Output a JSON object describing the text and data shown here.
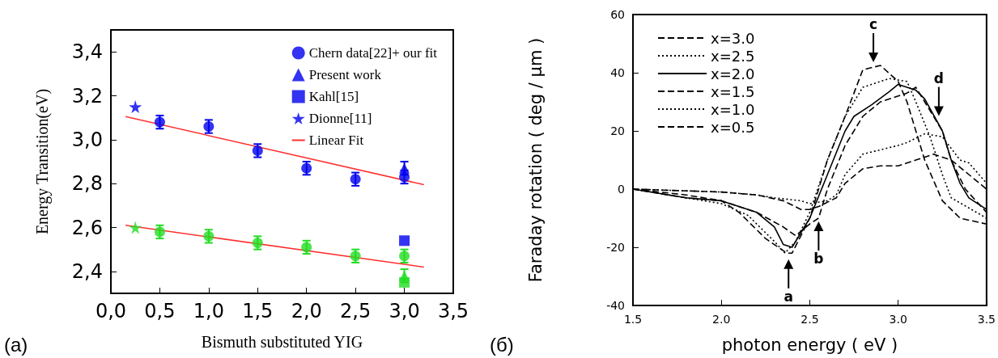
{
  "chart_data": [
    {
      "type": "scatter",
      "xlabel": "Bismuth substituted YIG",
      "ylabel": "Energy Transition(eV)",
      "xlim": [
        0,
        3.5
      ],
      "xticks": [
        {
          "value": 0,
          "label": "0,0"
        },
        {
          "value": 0.5,
          "label": "0,5"
        },
        {
          "value": 1,
          "label": "1,0"
        },
        {
          "value": 1.5,
          "label": "1,5"
        },
        {
          "value": 2,
          "label": "2,0"
        },
        {
          "value": 2.5,
          "label": "2,5"
        },
        {
          "value": 3,
          "label": "3,0"
        },
        {
          "value": 3.5,
          "label": "3,5"
        }
      ],
      "ylim": [
        2.3,
        3.5
      ],
      "yticks": [
        {
          "value": 2.4,
          "label": "2,4"
        },
        {
          "value": 2.6,
          "label": "2,6"
        },
        {
          "value": 2.8,
          "label": "2,8"
        },
        {
          "value": 3.0,
          "label": "3,0"
        },
        {
          "value": 3.2,
          "label": "3,2"
        },
        {
          "value": 3.4,
          "label": "3,4"
        }
      ],
      "legend": "top right",
      "annotations": [
        "(a)"
      ],
      "series": [
        {
          "name": "Chern data[22]+ our fit",
          "color": "#0000ee",
          "marker": "circle",
          "x": [
            0.5,
            1,
            1.5,
            2,
            2.5,
            3
          ],
          "values": [
            3.08,
            3.06,
            2.95,
            2.87,
            2.82,
            2.83
          ],
          "errors": [
            0.03,
            0.03,
            0.03,
            0.03,
            0.03,
            0.03
          ]
        },
        {
          "name": "Present work",
          "color": "#0000ee",
          "marker": "triangle",
          "x": [
            3
          ],
          "values": [
            2.87
          ],
          "errors": [
            0.03
          ]
        },
        {
          "name": "Kahl[15]",
          "color": "#0000ee",
          "marker": "square",
          "x": [
            3
          ],
          "values": [
            2.54
          ]
        },
        {
          "name": "Dionne[11]",
          "color": "#0000ee",
          "marker": "star",
          "x": [
            0.25
          ],
          "values": [
            3.15
          ]
        },
        {
          "name": "Linear Fit",
          "type": "line",
          "color": "#ff3030",
          "marker": "none",
          "x": [
            0.15,
            3.2
          ],
          "values": [
            3.105,
            2.795
          ]
        },
        {
          "color": "#22dd22",
          "marker": "circle",
          "x": [
            0.5,
            1,
            1.5,
            2,
            2.5,
            3
          ],
          "values": [
            2.58,
            2.56,
            2.53,
            2.51,
            2.47,
            2.47
          ],
          "errors": [
            0.03,
            0.03,
            0.03,
            0.03,
            0.03,
            0.03
          ]
        },
        {
          "color": "#22dd22",
          "marker": "square",
          "x": [
            3
          ],
          "values": [
            2.35
          ]
        },
        {
          "color": "#22dd22",
          "marker": "triangle",
          "x": [
            3
          ],
          "values": [
            2.38
          ],
          "errors": [
            0.03
          ]
        },
        {
          "color": "#22dd22",
          "marker": "star",
          "x": [
            0.25
          ],
          "values": [
            2.6
          ]
        },
        {
          "type": "line",
          "color": "#ff3030",
          "marker": "none",
          "x": [
            0.15,
            3.2
          ],
          "values": [
            2.61,
            2.42
          ]
        }
      ]
    },
    {
      "type": "line",
      "xlabel": "photon energy ( eV )",
      "ylabel": "Faraday rotation ( deg / μm )",
      "xlim": [
        1.5,
        3.5
      ],
      "xticks": [
        1.5,
        {
          "value": 2,
          "label": "2.0"
        },
        2.5,
        {
          "value": 3,
          "label": "3.0"
        },
        3.5
      ],
      "ylim": [
        -40,
        60
      ],
      "yticks": [
        -40,
        -20,
        0,
        20,
        40,
        60
      ],
      "legend": "top left",
      "marker": "none",
      "annotations": [
        "(б)",
        {
          "text": "a",
          "x": 2.38,
          "y": -23
        },
        {
          "text": "b",
          "x": 2.55,
          "y": -10
        },
        {
          "text": "c",
          "x": 2.86,
          "y": 42.5
        },
        {
          "text": "d",
          "x": 3.23,
          "y": 24
        }
      ],
      "series": [
        {
          "name": "x=3.0",
          "color": "#000000",
          "line_style": "dashed",
          "x": [
            1.5,
            1.8,
            2.0,
            2.1,
            2.25,
            2.37,
            2.4,
            2.5,
            2.6,
            2.7,
            2.8,
            2.9,
            3.0,
            3.05,
            3.15,
            3.25,
            3.35,
            3.5
          ],
          "values": [
            0,
            -2,
            -4,
            -8,
            -17,
            -22,
            -22,
            -10,
            10,
            25,
            41,
            42.5,
            37,
            30,
            10,
            -4,
            -10,
            -12
          ]
        },
        {
          "name": "x=2.5",
          "color": "#000000",
          "line_style": "dotted",
          "x": [
            1.5,
            1.8,
            2.0,
            2.15,
            2.3,
            2.36,
            2.42,
            2.5,
            2.6,
            2.7,
            2.8,
            2.9,
            2.95,
            3.05,
            3.1,
            3.18,
            3.25,
            3.3,
            3.5
          ],
          "values": [
            0,
            -3,
            -5,
            -9,
            -18,
            -22,
            -18,
            -8,
            10,
            25,
            35,
            37,
            38,
            37,
            30,
            18,
            5,
            -3,
            -10
          ]
        },
        {
          "name": "x=2.0",
          "color": "#000000",
          "line_style": "solid",
          "x": [
            1.5,
            1.8,
            2.0,
            2.2,
            2.3,
            2.35,
            2.4,
            2.5,
            2.6,
            2.7,
            2.75,
            2.85,
            2.95,
            3.0,
            3.1,
            3.15,
            3.25,
            3.3,
            3.35,
            3.4,
            3.5
          ],
          "values": [
            0,
            -3,
            -4,
            -8,
            -13,
            -19,
            -20,
            -10,
            5,
            20,
            25,
            29,
            33.5,
            36,
            34,
            31,
            20,
            10,
            2,
            -3,
            -7
          ]
        },
        {
          "name": "x=1.5",
          "color": "#000000",
          "line_style": "dashed",
          "x": [
            1.5,
            1.8,
            2.0,
            2.2,
            2.35,
            2.42,
            2.5,
            2.55,
            2.6,
            2.7,
            2.8,
            2.9,
            3.05,
            3.1,
            3.15,
            3.25,
            3.3,
            3.38,
            3.5
          ],
          "values": [
            0,
            -3,
            -4,
            -8,
            -13,
            -16,
            -12,
            -10,
            0,
            15,
            25,
            30,
            33,
            35,
            30,
            20,
            10,
            0,
            -8
          ]
        },
        {
          "name": "x=1.0",
          "color": "#000000",
          "line_style": "dotted",
          "x": [
            1.5,
            2.0,
            2.2,
            2.3,
            2.45,
            2.5,
            2.6,
            2.65,
            2.7,
            2.8,
            3.0,
            3.05,
            3.15,
            3.25,
            3.35,
            3.4,
            3.5
          ],
          "values": [
            0,
            -1,
            -2,
            -3,
            -4,
            -5,
            -4,
            -2,
            5,
            12,
            15,
            16,
            19,
            18,
            10,
            9,
            2
          ]
        },
        {
          "name": "x=0.5",
          "color": "#000000",
          "line_style": "dashed",
          "x": [
            1.5,
            2.0,
            2.2,
            2.35,
            2.45,
            2.5,
            2.55,
            2.65,
            2.7,
            2.8,
            2.9,
            3.0,
            3.1,
            3.2,
            3.3,
            3.4,
            3.5
          ],
          "values": [
            0,
            -1,
            -2,
            -4,
            -7,
            -7,
            -6,
            -3,
            2,
            7,
            8,
            8,
            10,
            12,
            10,
            5,
            0
          ]
        }
      ]
    }
  ]
}
